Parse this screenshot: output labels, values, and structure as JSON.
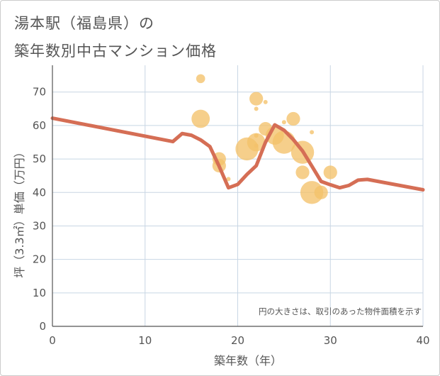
{
  "title_lines": [
    "湯本駅（福島県）の",
    "築年数別中古マンション価格"
  ],
  "chart_data": {
    "type": "scatter",
    "title": "湯本駅（福島県）の築年数別中古マンション価格",
    "xlabel": "築年数（年）",
    "ylabel": "坪（3.3㎡）単価（万円）",
    "xlim": [
      0,
      40
    ],
    "ylim": [
      0,
      78
    ],
    "xticks": [
      0,
      10,
      20,
      30,
      40
    ],
    "yticks": [
      0,
      10,
      20,
      30,
      40,
      50,
      60,
      70
    ],
    "grid": true,
    "note": "円の大きさは、取引のあった物件面積を示す",
    "colors": {
      "bubble": "#f3c26a",
      "trend": "#d56e55",
      "grid": "#c8d6e4",
      "axis": "#555555"
    },
    "bubbles": [
      {
        "x": 16,
        "y": 74,
        "size": 2
      },
      {
        "x": 16,
        "y": 62,
        "size": 4
      },
      {
        "x": 18,
        "y": 50,
        "size": 3
      },
      {
        "x": 18,
        "y": 48,
        "size": 3
      },
      {
        "x": 19,
        "y": 44,
        "size": 1
      },
      {
        "x": 21,
        "y": 53,
        "size": 5
      },
      {
        "x": 22,
        "y": 68,
        "size": 3
      },
      {
        "x": 22,
        "y": 65,
        "size": 1
      },
      {
        "x": 22,
        "y": 57,
        "size": 1
      },
      {
        "x": 22,
        "y": 55,
        "size": 4
      },
      {
        "x": 22,
        "y": 54,
        "size": 1
      },
      {
        "x": 23,
        "y": 67,
        "size": 1
      },
      {
        "x": 23,
        "y": 59,
        "size": 3
      },
      {
        "x": 24,
        "y": 57,
        "size": 4
      },
      {
        "x": 25,
        "y": 61,
        "size": 1
      },
      {
        "x": 25,
        "y": 55,
        "size": 5
      },
      {
        "x": 26,
        "y": 62,
        "size": 3
      },
      {
        "x": 27,
        "y": 52,
        "size": 5
      },
      {
        "x": 27,
        "y": 46,
        "size": 3
      },
      {
        "x": 28,
        "y": 58,
        "size": 1
      },
      {
        "x": 28,
        "y": 40,
        "size": 5
      },
      {
        "x": 29,
        "y": 40,
        "size": 3
      },
      {
        "x": 30,
        "y": 46,
        "size": 3
      }
    ],
    "trend": {
      "x": [
        0,
        13,
        14,
        15,
        16,
        17,
        18,
        19,
        20,
        21,
        22,
        23,
        24,
        25,
        26,
        27,
        28,
        29,
        30,
        31,
        32,
        33,
        34,
        40
      ],
      "y": [
        62.2,
        55.2,
        57.6,
        57.1,
        55.7,
        53.7,
        47.8,
        41.4,
        42.4,
        45.4,
        48.0,
        55.0,
        60.2,
        58.6,
        55.8,
        52.4,
        47.9,
        43.3,
        42.3,
        41.4,
        42.1,
        43.7,
        43.9,
        40.8
      ]
    }
  }
}
